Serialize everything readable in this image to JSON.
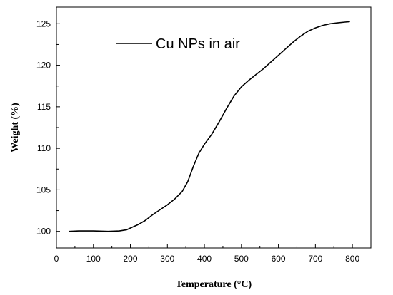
{
  "chart_data": {
    "type": "line",
    "xlabel": "Temperature (°C)",
    "ylabel": "Weight (%)",
    "xlim": [
      0,
      850
    ],
    "ylim": [
      98,
      127
    ],
    "xticks": [
      0,
      100,
      200,
      300,
      400,
      500,
      600,
      700,
      800
    ],
    "yticks": [
      100,
      105,
      110,
      115,
      120,
      125
    ],
    "grid": false,
    "legend_position": "top-left",
    "series": [
      {
        "name": "Cu NPs in air",
        "color": "#000000",
        "x": [
          35,
          60,
          100,
          140,
          170,
          190,
          205,
          220,
          240,
          260,
          280,
          300,
          320,
          340,
          355,
          370,
          385,
          400,
          420,
          440,
          460,
          480,
          500,
          520,
          540,
          560,
          580,
          600,
          620,
          640,
          660,
          680,
          700,
          720,
          740,
          760,
          780,
          792
        ],
        "y": [
          100.0,
          100.05,
          100.05,
          100.0,
          100.05,
          100.2,
          100.5,
          100.8,
          101.3,
          102.0,
          102.6,
          103.2,
          103.9,
          104.8,
          106.0,
          107.8,
          109.4,
          110.5,
          111.7,
          113.2,
          114.8,
          116.3,
          117.4,
          118.2,
          118.9,
          119.6,
          120.4,
          121.2,
          122.0,
          122.8,
          123.5,
          124.1,
          124.5,
          124.8,
          125.0,
          125.1,
          125.2,
          125.25
        ]
      }
    ]
  }
}
